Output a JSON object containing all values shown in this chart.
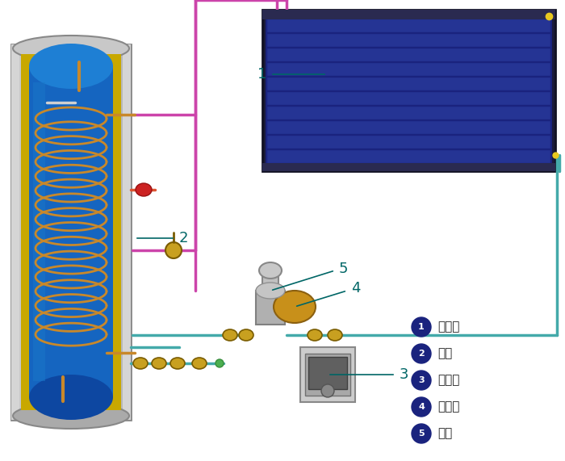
{
  "bg_color": "#ffffff",
  "legend_items": [
    {
      "num": "1",
      "label": "集热器"
    },
    {
      "num": "2",
      "label": "水箱"
    },
    {
      "num": "3",
      "label": "控制器"
    },
    {
      "num": "4",
      "label": "膨胀阀"
    },
    {
      "num": "5",
      "label": "水泵"
    }
  ],
  "pipe_pink": "#cc44aa",
  "pipe_teal": "#44aaaa",
  "label_color": "#006666",
  "coil_color": "#c8882a",
  "fitting_gold": "#c8a020",
  "fitting_red": "#dd3333"
}
